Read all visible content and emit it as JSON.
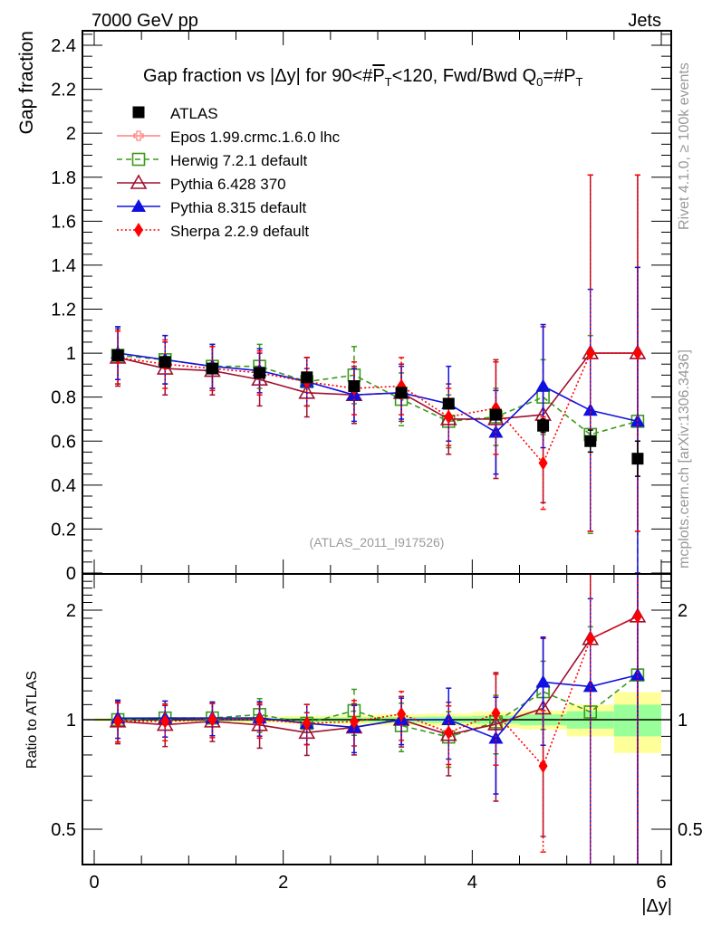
{
  "header": {
    "left_label": "7000 GeV pp",
    "right_label": "Jets",
    "side_label_top": "Rivet 4.1.0, ≥ 100k events",
    "side_label_bottom": "mcplots.cern.ch [arXiv:1306.3436]",
    "analysis_id": "(ATLAS_2011_I917526)"
  },
  "chart_data": [
    {
      "type": "line",
      "panel": "main",
      "title": "Gap fraction vs |Δy| for 90<#P̅T<120, Fwd/Bwd Q0=#P̅T",
      "title_parts": {
        "prefix": "Gap fraction vs |Δy| for 90<#",
        "pt": "P",
        "pt_sub": "T",
        "middle": "<120, Fwd/Bwd Q",
        "q_sub": "0",
        "eq": "=#",
        "pt2": "P",
        "pt2_sub": "T"
      },
      "xlabel": "|Δy|",
      "ylabel": "Gap fraction",
      "xlim": [
        0,
        6
      ],
      "ylim": [
        0,
        2.45
      ],
      "yticks": [
        0,
        0.2,
        0.4,
        0.6,
        0.8,
        1,
        1.2,
        1.4,
        1.6,
        1.8,
        2,
        2.2,
        2.4
      ],
      "ytick_labels": [
        "0",
        "0.2",
        "0.4",
        "0.6",
        "0.8",
        "1",
        "1.2",
        "1.4",
        "1.6",
        "1.8",
        "2",
        "2.2",
        "2.4"
      ],
      "legend_position": "top-left",
      "x": [
        0.25,
        0.75,
        1.25,
        1.75,
        2.25,
        2.75,
        3.25,
        3.75,
        4.25,
        4.75,
        5.25,
        5.75
      ],
      "series": [
        {
          "name": "ATLAS",
          "color": "#000000",
          "marker": "square-filled",
          "line": "none",
          "values": [
            0.99,
            0.96,
            0.93,
            0.91,
            0.89,
            0.85,
            0.82,
            0.77,
            0.72,
            0.67,
            0.6,
            0.52
          ],
          "err": [
            0.01,
            0.01,
            0.01,
            0.01,
            0.01,
            0.02,
            0.02,
            0.02,
            0.02,
            0.03,
            0.05,
            0.08
          ]
        },
        {
          "name": "Epos 1.99.crmc.1.6.0 lhc",
          "color": "#ff8080",
          "marker": "cross-open",
          "line": "solid",
          "values": [],
          "err": []
        },
        {
          "name": "Herwig 7.2.1 default",
          "color": "#3a9a1a",
          "marker": "square-open",
          "line": "dashed",
          "values": [
            0.99,
            0.97,
            0.94,
            0.94,
            0.87,
            0.9,
            0.79,
            0.69,
            0.71,
            0.8,
            0.63,
            0.69
          ],
          "err": [
            0.13,
            0.11,
            0.1,
            0.1,
            0.11,
            0.13,
            0.12,
            0.12,
            0.13,
            0.17,
            0.45,
            0.7
          ]
        },
        {
          "name": "Pythia 6.428 370",
          "color": "#a01030",
          "marker": "triangle-open",
          "line": "solid",
          "values": [
            0.98,
            0.93,
            0.92,
            0.88,
            0.82,
            0.81,
            0.82,
            0.7,
            0.7,
            0.72,
            1.0,
            1.0
          ],
          "err": [
            0.13,
            0.12,
            0.11,
            0.12,
            0.11,
            0.13,
            0.13,
            0.16,
            0.27,
            0.4,
            0.81,
            0.81
          ]
        },
        {
          "name": "Pythia 8.315 default",
          "color": "#1010e0",
          "marker": "triangle-filled",
          "line": "solid",
          "values": [
            1.0,
            0.97,
            0.94,
            0.92,
            0.87,
            0.81,
            0.82,
            0.77,
            0.64,
            0.85,
            0.74,
            0.69
          ],
          "err": [
            0.12,
            0.11,
            0.1,
            0.1,
            0.11,
            0.12,
            0.12,
            0.17,
            0.19,
            0.28,
            0.55,
            0.7
          ]
        },
        {
          "name": "Sherpa 2.2.9 default",
          "color": "#ff0000",
          "marker": "diamond-filled",
          "line": "dotted",
          "values": [
            0.98,
            0.95,
            0.93,
            0.91,
            0.87,
            0.84,
            0.85,
            0.71,
            0.75,
            0.5,
            1.0,
            1.0
          ],
          "err": [
            0.12,
            0.11,
            0.1,
            0.1,
            0.11,
            0.12,
            0.13,
            0.13,
            0.21,
            0.21,
            0.81,
            0.81
          ]
        }
      ]
    },
    {
      "type": "line",
      "panel": "ratio",
      "xlabel": "|Δy|",
      "ylabel": "Ratio to ATLAS",
      "xlim": [
        0,
        6
      ],
      "ylim": [
        0.4,
        2.5
      ],
      "yscale": "log",
      "xticks": [
        0,
        2,
        4,
        6
      ],
      "xtick_labels": [
        "0",
        "2",
        "4",
        "6"
      ],
      "yticks_labeled": [
        0.5,
        1,
        2
      ],
      "ytick_labels": [
        "0.5",
        "1",
        "2"
      ],
      "reference_band": {
        "bin_edges": [
          0,
          0.5,
          1,
          1.5,
          2,
          2.5,
          3,
          3.5,
          4,
          4.5,
          5,
          5.5,
          6
        ],
        "total_unc": [
          0.01,
          0.015,
          0.015,
          0.02,
          0.025,
          0.03,
          0.035,
          0.04,
          0.05,
          0.06,
          0.1,
          0.19
        ],
        "stat_unc": [
          0.005,
          0.008,
          0.01,
          0.01,
          0.012,
          0.015,
          0.018,
          0.02,
          0.025,
          0.035,
          0.055,
          0.1
        ],
        "total_color": "#ffff99",
        "stat_color": "#99ff99"
      },
      "x": [
        0.25,
        0.75,
        1.25,
        1.75,
        2.25,
        2.75,
        3.25,
        3.75,
        4.25,
        4.75,
        5.25,
        5.75
      ]
    }
  ]
}
